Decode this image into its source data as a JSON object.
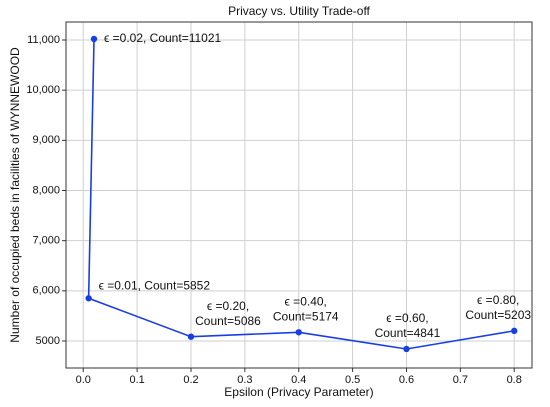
{
  "chart_data": {
    "type": "line",
    "title": "Privacy vs. Utility Trade-off",
    "x_label": "Epsilon (Privacy Parameter)",
    "y_label": "Number of occupied beds in facilities of WYNNEWOOD",
    "x": [
      0.02,
      0.01,
      0.2,
      0.4,
      0.6,
      0.8
    ],
    "series": [
      {
        "color": "#1a3ee6",
        "values": [
          11021,
          5852,
          5086,
          5174,
          4841,
          5203
        ]
      }
    ],
    "annotations": [
      {
        "lines": [
          "ϵ =0.02, Count=11021"
        ]
      },
      {
        "lines": [
          "ϵ =0.01, Count=5852"
        ]
      },
      {
        "lines": [
          "ϵ =0.20,",
          "Count=5086"
        ]
      },
      {
        "lines": [
          "ϵ =0.40,",
          "Count=5174"
        ]
      },
      {
        "lines": [
          "ϵ =0.60,",
          "Count=4841"
        ]
      },
      {
        "lines": [
          "ϵ =0.80,",
          "Count=5203"
        ]
      }
    ],
    "xlim": [
      -0.032,
      0.833
    ],
    "ylim": [
      4462,
      11359
    ],
    "xticks": [
      {
        "value": 0,
        "label": "0.0"
      },
      0.1,
      0.2,
      0.3,
      0.4,
      0.5,
      0.6,
      0.7,
      0.8
    ],
    "yticks": [
      {
        "value": 5000,
        "label": "5000"
      },
      {
        "value": 6000,
        "label": "6,000"
      },
      {
        "value": 7000,
        "label": "7,000"
      },
      {
        "value": 8000,
        "label": "8,000"
      },
      {
        "value": 9000,
        "label": "9,000"
      },
      {
        "value": 10000,
        "label": "10,000"
      },
      {
        "value": 11000,
        "label": "11,000"
      }
    ],
    "grid": true
  }
}
